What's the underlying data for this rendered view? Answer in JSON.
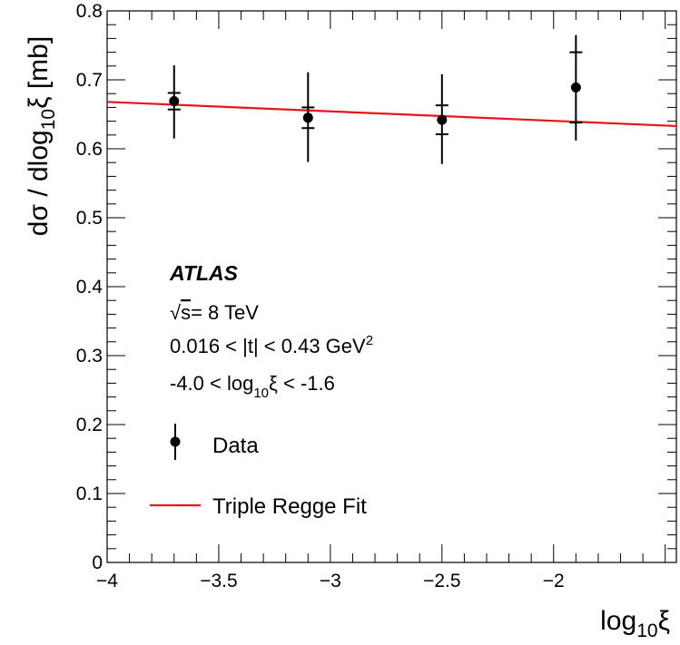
{
  "chart_data": {
    "type": "scatter",
    "xlabel": {
      "main": "log",
      "sub": "10",
      "tail": "ξ"
    },
    "ylabel": {
      "pre": "dσ / dlog",
      "sub": "10",
      "tail": "ξ  [mb]"
    },
    "xlim": [
      -4.0,
      -1.45
    ],
    "ylim": [
      0,
      0.8
    ],
    "x_ticks": [
      -4,
      -3.5,
      -3,
      -2.5,
      -2
    ],
    "x_tick_labels": [
      "−4",
      "−3.5",
      "−3",
      "−2.5",
      "−2"
    ],
    "y_ticks": [
      0,
      0.1,
      0.2,
      0.3,
      0.4,
      0.5,
      0.6,
      0.7,
      0.8
    ],
    "y_tick_labels": [
      "0",
      "0.1",
      "0.2",
      "0.3",
      "0.4",
      "0.5",
      "0.6",
      "0.7",
      "0.8"
    ],
    "series": [
      {
        "name": "Data",
        "kind": "points",
        "color": "#000000",
        "points": [
          {
            "x": -3.7,
            "y": 0.669,
            "stat": 0.012,
            "total_up": 0.052,
            "total_down": 0.054
          },
          {
            "x": -3.1,
            "y": 0.645,
            "stat": 0.015,
            "total_up": 0.066,
            "total_down": 0.064
          },
          {
            "x": -2.5,
            "y": 0.642,
            "stat": 0.021,
            "total_up": 0.066,
            "total_down": 0.064
          },
          {
            "x": -1.9,
            "y": 0.689,
            "stat": 0.051,
            "total_up": 0.076,
            "total_down": 0.077
          }
        ]
      },
      {
        "name": "Triple Regge Fit",
        "kind": "line",
        "color": "#e8141c",
        "x": [
          -4.0,
          -1.45
        ],
        "y": [
          0.668,
          0.633
        ]
      }
    ],
    "annotations": {
      "experiment": "ATLAS",
      "energy": {
        "sqrt": "√",
        "s": "s",
        "rest": "= 8 TeV"
      },
      "t_range": {
        "main": "0.016 < |t| < 0.43 GeV",
        "sup": "2"
      },
      "xi_range": {
        "pre": "-4.0 < log",
        "sub": "10",
        "post": "ξ < -1.6"
      }
    },
    "legend_position": "bottom-left",
    "grid": false
  }
}
